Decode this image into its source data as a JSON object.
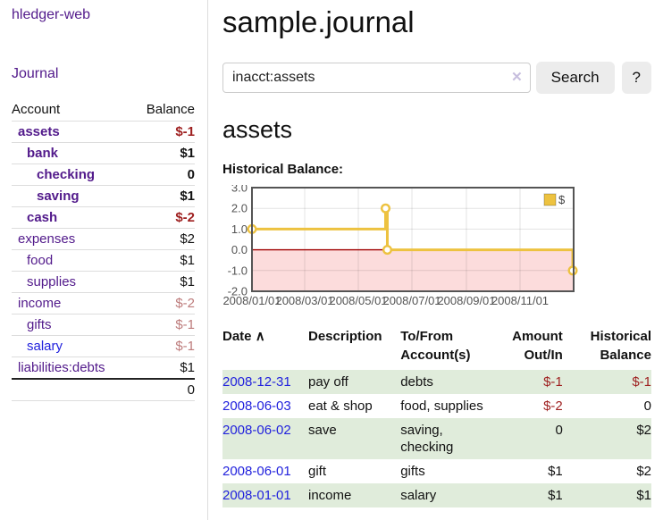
{
  "app": {
    "brand": "hledger-web"
  },
  "nav": {
    "journal": "Journal"
  },
  "colors": {
    "link_purple": "#521a8b",
    "link_blue": "#2222dd",
    "negative": "#9e1f1f",
    "negative_muted": "#bd7b7b",
    "row_green": "#e0ecdb",
    "chart_line_gold": "#edc240",
    "chart_negative_region": "#fcdcdc",
    "chart_zero_line": "#a00000",
    "chart_border": "#545454"
  },
  "sidebar": {
    "accounts": {
      "headers": [
        "Account",
        "Balance"
      ],
      "rows": [
        {
          "account": "assets",
          "balance": "$-1",
          "level": 1,
          "bold": true,
          "neg": true,
          "muted": false,
          "blue": false
        },
        {
          "account": "bank",
          "balance": "$1",
          "level": 2,
          "bold": true,
          "neg": false,
          "muted": false,
          "blue": false
        },
        {
          "account": "checking",
          "balance": "0",
          "level": 3,
          "bold": true,
          "neg": false,
          "muted": false,
          "blue": false
        },
        {
          "account": "saving",
          "balance": "$1",
          "level": 3,
          "bold": true,
          "neg": false,
          "muted": false,
          "blue": false
        },
        {
          "account": "cash",
          "balance": "$-2",
          "level": 2,
          "bold": true,
          "neg": true,
          "muted": false,
          "blue": false
        },
        {
          "account": "expenses",
          "balance": "$2",
          "level": 1,
          "bold": false,
          "neg": false,
          "muted": false,
          "blue": false
        },
        {
          "account": "food",
          "balance": "$1",
          "level": 2,
          "bold": false,
          "neg": false,
          "muted": false,
          "blue": false
        },
        {
          "account": "supplies",
          "balance": "$1",
          "level": 2,
          "bold": false,
          "neg": false,
          "muted": false,
          "blue": false
        },
        {
          "account": "income",
          "balance": "$-2",
          "level": 1,
          "bold": false,
          "neg": false,
          "muted": true,
          "blue": false
        },
        {
          "account": "gifts",
          "balance": "$-1",
          "level": 2,
          "bold": false,
          "neg": false,
          "muted": true,
          "blue": false
        },
        {
          "account": "salary",
          "balance": "$-1",
          "level": 2,
          "bold": false,
          "neg": false,
          "muted": true,
          "blue": true
        },
        {
          "account": "liabilities:debts",
          "balance": "$1",
          "level": 1,
          "bold": false,
          "neg": false,
          "muted": false,
          "blue": false
        }
      ],
      "total": "0"
    }
  },
  "main": {
    "title": "sample.journal",
    "search": {
      "value": "inacct:assets",
      "clear_icon": "✕",
      "button": "Search",
      "help_button": "?"
    },
    "account_heading": "assets",
    "chart_label": "Historical Balance:"
  },
  "chart_data": {
    "type": "line",
    "title": "Historical Balance:",
    "series": [
      {
        "name": "$",
        "color": "#edc240",
        "step": true,
        "points": [
          [
            "2008-01-01",
            1.0
          ],
          [
            "2008-06-01",
            2.0
          ],
          [
            "2008-06-03",
            0.0
          ],
          [
            "2008-12-31",
            -1.0
          ]
        ]
      }
    ],
    "x_range": [
      "2008-01-01",
      "2009-01-01"
    ],
    "x_ticks": [
      "2008/01/01",
      "2008/03/01",
      "2008/05/01",
      "2008/07/01",
      "2008/09/01",
      "2008/11/01"
    ],
    "y_ticks": [
      3.0,
      2.0,
      1.0,
      0.0,
      -1.0,
      -2.0
    ],
    "ylim": [
      -2,
      3
    ],
    "grid": true,
    "legend": {
      "position": "top-right",
      "label": "$"
    },
    "negative_region_color": "#fcdcdc",
    "zero_line_color": "#a00000"
  },
  "transactions": {
    "headers": [
      "Date",
      "Description",
      "To/From Account(s)",
      "Amount Out/In",
      "Historical Balance"
    ],
    "sort_icon": "∧",
    "rows": [
      {
        "date": "2008-12-31",
        "description": "pay off",
        "tofrom": "debts",
        "amount": "$-1",
        "balance": "$-1",
        "amount_neg": true,
        "balance_neg": true
      },
      {
        "date": "2008-06-03",
        "description": "eat & shop",
        "tofrom": "food, supplies",
        "amount": "$-2",
        "balance": "0",
        "amount_neg": true,
        "balance_neg": false
      },
      {
        "date": "2008-06-02",
        "description": "save",
        "tofrom": "saving, checking",
        "amount": "0",
        "balance": "$2",
        "amount_neg": false,
        "balance_neg": false
      },
      {
        "date": "2008-06-01",
        "description": "gift",
        "tofrom": "gifts",
        "amount": "$1",
        "balance": "$2",
        "amount_neg": false,
        "balance_neg": false
      },
      {
        "date": "2008-01-01",
        "description": "income",
        "tofrom": "salary",
        "amount": "$1",
        "balance": "$1",
        "amount_neg": false,
        "balance_neg": false
      }
    ]
  }
}
